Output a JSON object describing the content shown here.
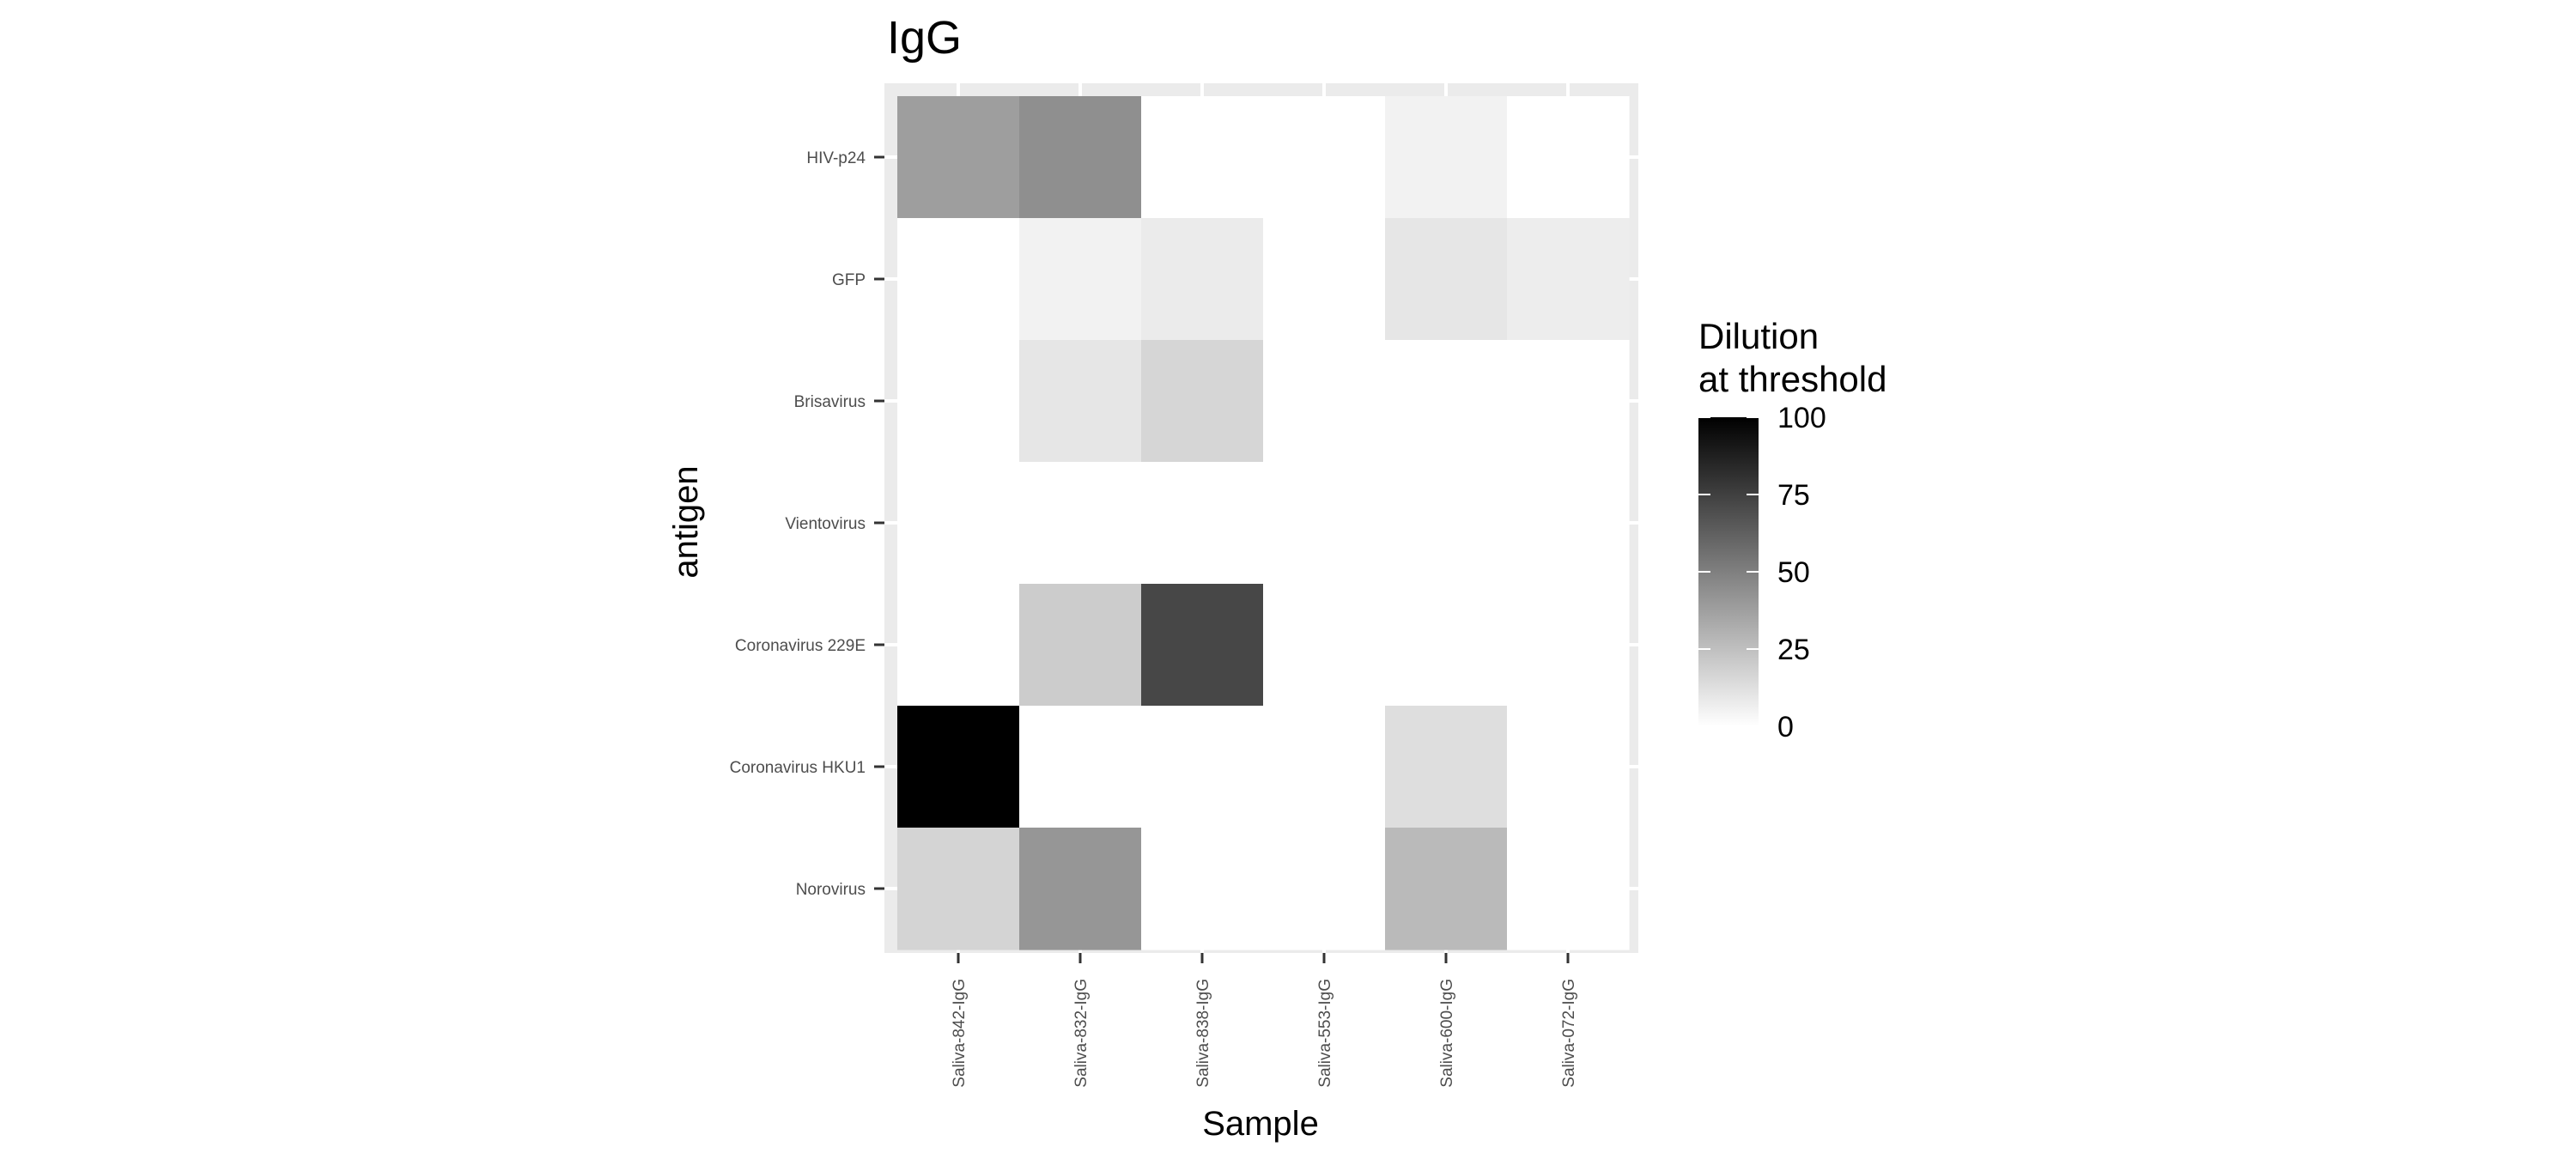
{
  "chart_data": {
    "type": "heatmap",
    "title": "IgG",
    "xlabel": "Sample",
    "ylabel": "antigen",
    "x": [
      "Saliva-842-IgG",
      "Saliva-832-IgG",
      "Saliva-838-IgG",
      "Saliva-553-IgG",
      "Saliva-600-IgG",
      "Saliva-072-IgG"
    ],
    "y": [
      "HIV-p24",
      "GFP",
      "Brisavirus",
      "Vientovirus",
      "Coronavirus 229E",
      "Coronavirus HKU1",
      "Norovirus"
    ],
    "values": [
      [
        38,
        44,
        0,
        0,
        5,
        0
      ],
      [
        0,
        5,
        8,
        0,
        10,
        7
      ],
      [
        0,
        10,
        16,
        0,
        0,
        0
      ],
      [
        0,
        0,
        0,
        0,
        0,
        0
      ],
      [
        0,
        20,
        72,
        0,
        0,
        0
      ],
      [
        100,
        0,
        0,
        0,
        13,
        0
      ],
      [
        17,
        41,
        0,
        0,
        27,
        0
      ]
    ],
    "legend": {
      "title": [
        "Dilution",
        "at threshold"
      ],
      "ticks": [
        0,
        25,
        50,
        75,
        100
      ],
      "position": "right"
    },
    "color_scale": {
      "low": "#ffffff",
      "high": "#000000"
    },
    "value_range": [
      0,
      100
    ],
    "grid": true
  }
}
